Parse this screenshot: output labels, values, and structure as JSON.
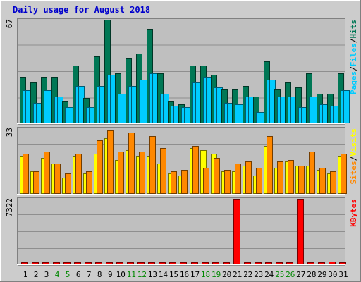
{
  "title": "Daily usage for August 2018",
  "colors": {
    "background": "#cccccc",
    "panel": "#bfbfbf",
    "grid": "#8f8f8f",
    "title": "#0000cc",
    "hits": "#007755",
    "files": "#00ccff",
    "pages": "#00ccff",
    "visits": "#ffff00",
    "sites": "#ff8800",
    "kbytes": "#ff0000",
    "weekend": "#008800",
    "weekday": "#000000"
  },
  "chart_data": [
    {
      "type": "bar",
      "name": "hits-files-pages",
      "ymax_label": "67",
      "ylim": [
        0,
        67
      ],
      "legend": [
        "Pages",
        "/",
        "Files",
        "/",
        "Hits"
      ],
      "categories": [
        "1",
        "2",
        "3",
        "4",
        "5",
        "6",
        "7",
        "8",
        "9",
        "10",
        "11",
        "12",
        "13",
        "14",
        "15",
        "16",
        "17",
        "18",
        "19",
        "20",
        "21",
        "22",
        "23",
        "24",
        "25",
        "26",
        "27",
        "28",
        "29",
        "30",
        "31"
      ],
      "series": [
        {
          "name": "Hits",
          "values": [
            30,
            26,
            30,
            30,
            14,
            37,
            16,
            43,
            67,
            32,
            42,
            45,
            61,
            32,
            14,
            12,
            37,
            37,
            31,
            22,
            22,
            24,
            17,
            40,
            22,
            26,
            23,
            32,
            19,
            19,
            32
          ]
        },
        {
          "name": "Files",
          "values": [
            21,
            13,
            21,
            17,
            10,
            24,
            10,
            24,
            31,
            19,
            24,
            28,
            32,
            19,
            11,
            10,
            26,
            30,
            23,
            13,
            12,
            17,
            7,
            28,
            17,
            17,
            10,
            17,
            12,
            11,
            21
          ]
        },
        {
          "name": "Pages",
          "values": [
            21,
            13,
            21,
            17,
            10,
            24,
            10,
            24,
            31,
            19,
            24,
            28,
            32,
            19,
            11,
            10,
            26,
            30,
            23,
            13,
            12,
            17,
            7,
            28,
            17,
            17,
            10,
            17,
            12,
            11,
            21
          ]
        }
      ]
    },
    {
      "type": "bar",
      "name": "sites-visits",
      "ymax_label": "33",
      "ylim": [
        0,
        33
      ],
      "legend": [
        "Sites",
        "/",
        "Visits"
      ],
      "categories": [
        "1",
        "2",
        "3",
        "4",
        "5",
        "6",
        "7",
        "8",
        "9",
        "10",
        "11",
        "12",
        "13",
        "14",
        "15",
        "16",
        "17",
        "18",
        "19",
        "20",
        "21",
        "22",
        "23",
        "24",
        "25",
        "26",
        "27",
        "28",
        "29",
        "30",
        "31"
      ],
      "series": [
        {
          "name": "Visits",
          "values": [
            19,
            11,
            18,
            15,
            8,
            19,
            10,
            20,
            28,
            17,
            22,
            19,
            19,
            15,
            10,
            9,
            23,
            22,
            20,
            11,
            11,
            14,
            9,
            24,
            13,
            16,
            14,
            14,
            12,
            10,
            19
          ]
        },
        {
          "name": "Sites",
          "values": [
            20,
            11,
            21,
            15,
            10,
            20,
            11,
            27,
            32,
            21,
            31,
            21,
            29,
            23,
            11,
            12,
            24,
            13,
            18,
            12,
            15,
            16,
            13,
            29,
            16,
            17,
            14,
            21,
            13,
            11,
            20
          ]
        }
      ]
    },
    {
      "type": "bar",
      "name": "kbytes",
      "ymax_label": "7322",
      "ylim": [
        0,
        7322
      ],
      "legend": [
        "KBytes"
      ],
      "categories": [
        "1",
        "2",
        "3",
        "4",
        "5",
        "6",
        "7",
        "8",
        "9",
        "10",
        "11",
        "12",
        "13",
        "14",
        "15",
        "16",
        "17",
        "18",
        "19",
        "20",
        "21",
        "22",
        "23",
        "24",
        "25",
        "26",
        "27",
        "28",
        "29",
        "30",
        "31"
      ],
      "series": [
        {
          "name": "KBytes",
          "values": [
            60,
            60,
            60,
            60,
            60,
            60,
            60,
            60,
            60,
            60,
            60,
            60,
            60,
            60,
            60,
            60,
            60,
            60,
            60,
            60,
            7322,
            60,
            60,
            60,
            60,
            60,
            7322,
            60,
            60,
            200,
            60
          ]
        }
      ]
    }
  ],
  "x_axis": {
    "labels": [
      "1",
      "2",
      "3",
      "4",
      "5",
      "6",
      "7",
      "8",
      "9",
      "10",
      "11",
      "12",
      "13",
      "14",
      "15",
      "16",
      "17",
      "18",
      "19",
      "20",
      "21",
      "22",
      "23",
      "24",
      "25",
      "26",
      "27",
      "28",
      "29",
      "30",
      "31"
    ],
    "weekend": [
      4,
      5,
      11,
      12,
      18,
      19,
      25,
      26
    ]
  }
}
